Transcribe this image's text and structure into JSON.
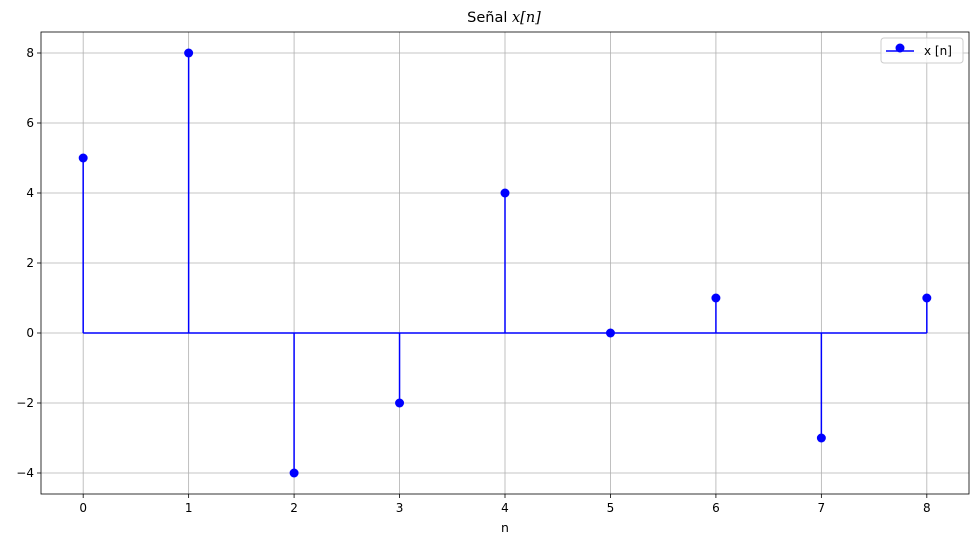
{
  "chart_data": {
    "type": "stem",
    "title": {
      "prefix": "Señal ",
      "math": "x[n]"
    },
    "xlabel": "n",
    "ylabel": "",
    "x": [
      0,
      1,
      2,
      3,
      4,
      5,
      6,
      7,
      8
    ],
    "series": [
      {
        "name": "x [n]",
        "values": [
          5,
          8,
          -4,
          -2,
          4,
          0,
          1,
          -3,
          1
        ],
        "color": "#0000ff"
      }
    ],
    "baseline": 0,
    "xlim": [
      -0.4,
      8.4
    ],
    "ylim": [
      -4.6,
      8.6
    ],
    "xticks": [
      0,
      1,
      2,
      3,
      4,
      5,
      6,
      7,
      8
    ],
    "yticks": [
      -4,
      -2,
      0,
      2,
      4,
      6,
      8
    ],
    "grid": true,
    "legend_position": "upper right",
    "colors": {
      "stem": "#0000ff",
      "grid": "#b0b0b0",
      "axes": "#000000"
    }
  }
}
